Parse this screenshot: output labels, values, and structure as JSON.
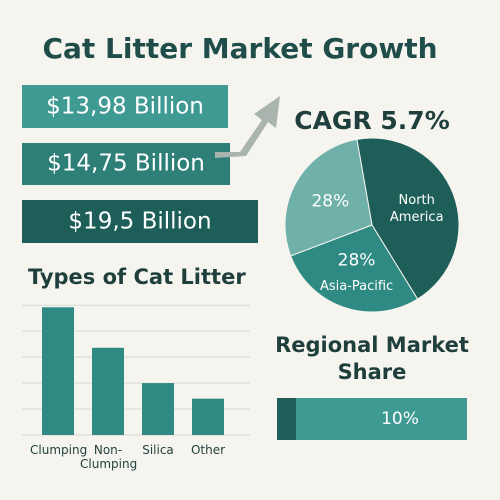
{
  "title": "Cat Litter Market Growth",
  "banners": [
    "$13,98 Billion",
    "$14,75 Billion",
    "$19,5 Billion"
  ],
  "cagr": "CAGR 5.7%",
  "chart_data": [
    {
      "type": "pie",
      "categories": [
        "North America",
        "Asia-Pacific",
        null
      ],
      "values": [
        44,
        28,
        28
      ],
      "value_labels": [
        null,
        "28%",
        "28%"
      ],
      "colors": [
        "#1e5e59",
        "#2e8a82",
        "#6fb0a8"
      ]
    },
    {
      "type": "bar",
      "title": "Types of Cat Litter",
      "categories": [
        "Clumping",
        "Non-Clumping",
        "Silica",
        "Other"
      ],
      "values": [
        123,
        84,
        50,
        35
      ],
      "color": "#2e8a82",
      "ylim": [
        0,
        130
      ],
      "yticks": [
        0,
        25,
        50,
        75,
        100,
        125
      ],
      "grid": true
    },
    {
      "type": "progress",
      "title": "Regional Market Share",
      "values": [
        10
      ],
      "value_labels": [
        "10%"
      ],
      "xlim": [
        0,
        100
      ],
      "colors": [
        "#1e5e59",
        "#3e9a93"
      ]
    }
  ]
}
